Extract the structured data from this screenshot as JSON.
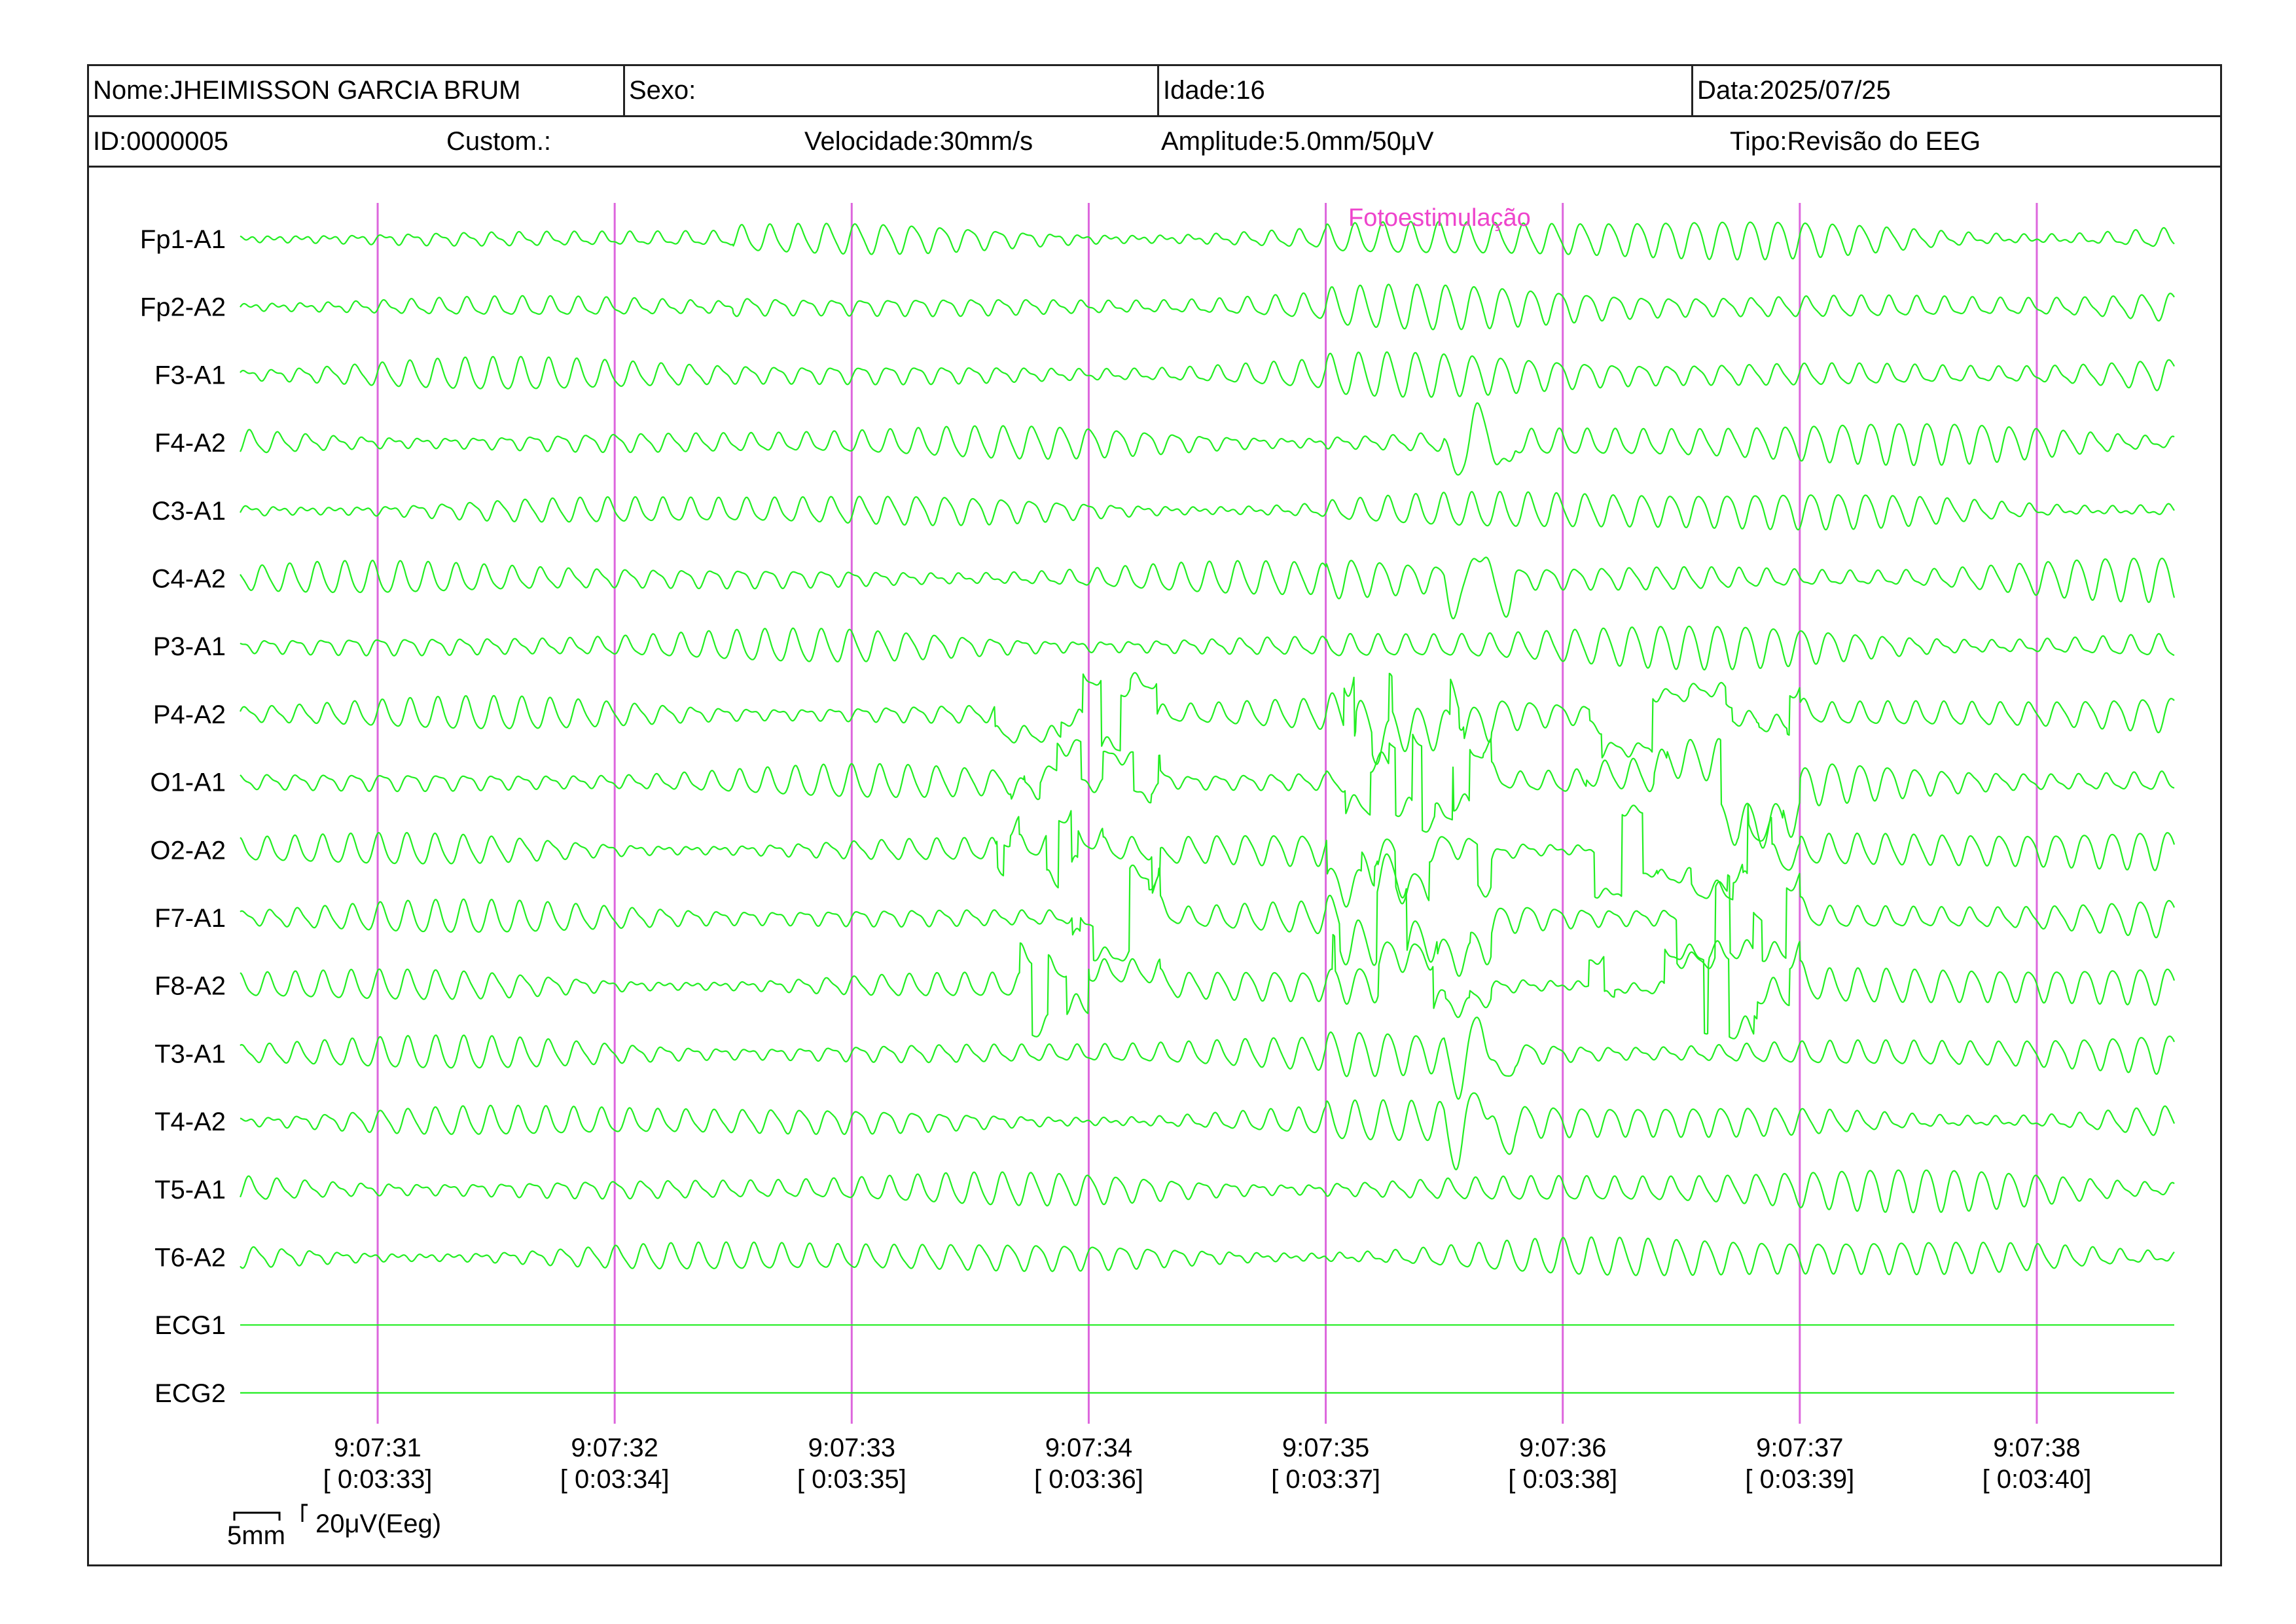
{
  "header": {
    "nome": "Nome:JHEIMISSON GARCIA BRUM",
    "sexo": "Sexo:",
    "idade": "Idade:16",
    "data": "Data:2025/07/25",
    "id": "ID:0000005",
    "custom": "Custom.:",
    "velocidade": "Velocidade:30mm/s",
    "amplitude": "Amplitude:5.0mm/50μV",
    "tipo": "Tipo:Revisão do EEG"
  },
  "annotation": "Fotoestimulação",
  "scale": {
    "time_label": "5mm",
    "amp_label": "20μV(Eeg)"
  },
  "colors": {
    "trace": "#22ee22",
    "marker": "#dd66dd",
    "annotation": "#ee44cc",
    "text": "#000000"
  },
  "chart_data": {
    "type": "line",
    "channels": [
      "Fp1-A1",
      "Fp2-A2",
      "F3-A1",
      "F4-A2",
      "C3-A1",
      "C4-A2",
      "P3-A1",
      "P4-A2",
      "O1-A1",
      "O2-A2",
      "F7-A1",
      "F8-A2",
      "T3-A1",
      "T4-A2",
      "T5-A1",
      "T6-A2",
      "ECG1",
      "ECG2"
    ],
    "time_markers": [
      {
        "clock": "9:07:31",
        "elapsed": "[ 0:03:33]"
      },
      {
        "clock": "9:07:32",
        "elapsed": "[ 0:03:34]"
      },
      {
        "clock": "9:07:33",
        "elapsed": "[ 0:03:35]"
      },
      {
        "clock": "9:07:34",
        "elapsed": "[ 0:03:36]"
      },
      {
        "clock": "9:07:35",
        "elapsed": "[ 0:03:37]"
      },
      {
        "clock": "9:07:36",
        "elapsed": "[ 0:03:38]"
      },
      {
        "clock": "9:07:37",
        "elapsed": "[ 0:03:39]"
      },
      {
        "clock": "9:07:38",
        "elapsed": "[ 0:03:40]"
      }
    ],
    "x_range_s": [
      -0.58,
      7.58
    ],
    "dominant_frequency_hz": 8.5,
    "annotation_time_s": 4.1,
    "flat_channels": [
      "ECG1",
      "ECG2"
    ]
  }
}
